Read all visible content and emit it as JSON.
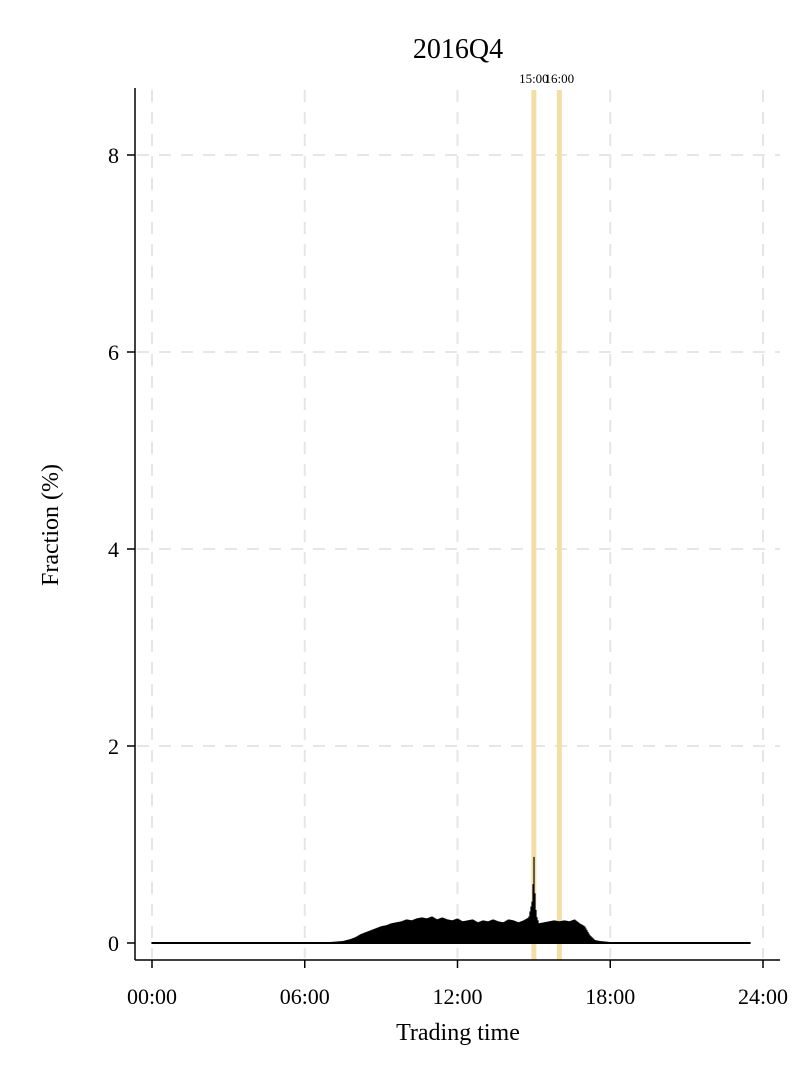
{
  "chart_data": {
    "type": "bar",
    "title": "2016Q4",
    "xlabel": "Trading time",
    "ylabel": "Fraction (%)",
    "xlim": [
      0,
      24
    ],
    "ylim": [
      -0.15,
      8.6
    ],
    "x_ticks": [
      {
        "value": 0,
        "label": "00:00"
      },
      {
        "value": 6,
        "label": "06:00"
      },
      {
        "value": 12,
        "label": "12:00"
      },
      {
        "value": 18,
        "label": "18:00"
      },
      {
        "value": 24,
        "label": "24:00"
      }
    ],
    "y_ticks": [
      {
        "value": 0,
        "label": "0"
      },
      {
        "value": 2,
        "label": "2"
      },
      {
        "value": 4,
        "label": "4"
      },
      {
        "value": 6,
        "label": "6"
      },
      {
        "value": 8,
        "label": "8"
      }
    ],
    "grid": true,
    "reference_lines": [
      {
        "x": 15,
        "label": "15:00",
        "color": "#f3dfa6"
      },
      {
        "x": 16,
        "label": "16:00",
        "color": "#f3dfa6"
      }
    ],
    "series": [
      {
        "x": [
          0.0,
          1.0,
          2.0,
          3.0,
          4.0,
          5.0,
          6.0,
          7.0,
          7.5,
          7.8,
          8.0,
          8.2,
          8.4,
          8.6,
          8.8,
          9.0,
          9.2,
          9.4,
          9.6,
          9.8,
          10.0,
          10.2,
          10.4,
          10.6,
          10.8,
          11.0,
          11.2,
          11.4,
          11.6,
          11.8,
          12.0,
          12.2,
          12.4,
          12.6,
          12.8,
          13.0,
          13.2,
          13.4,
          13.6,
          13.8,
          14.0,
          14.2,
          14.4,
          14.6,
          14.8,
          14.95,
          15.0,
          15.05,
          15.1,
          15.2,
          15.4,
          15.6,
          15.8,
          16.0,
          16.2,
          16.4,
          16.6,
          16.8,
          17.0,
          17.2,
          17.4,
          17.6,
          18.0,
          19.0,
          20.0,
          21.0,
          22.0,
          23.0,
          23.5
        ],
        "values": [
          0.01,
          0.01,
          0.01,
          0.01,
          0.01,
          0.01,
          0.01,
          0.01,
          0.02,
          0.04,
          0.06,
          0.09,
          0.11,
          0.13,
          0.15,
          0.17,
          0.18,
          0.2,
          0.21,
          0.22,
          0.24,
          0.23,
          0.25,
          0.26,
          0.25,
          0.27,
          0.24,
          0.26,
          0.24,
          0.23,
          0.25,
          0.22,
          0.23,
          0.24,
          0.21,
          0.23,
          0.22,
          0.24,
          0.22,
          0.21,
          0.24,
          0.23,
          0.21,
          0.23,
          0.26,
          0.45,
          0.92,
          0.45,
          0.28,
          0.2,
          0.21,
          0.22,
          0.23,
          0.22,
          0.23,
          0.22,
          0.24,
          0.2,
          0.17,
          0.08,
          0.03,
          0.02,
          0.01,
          0.01,
          0.01,
          0.01,
          0.01,
          0.01,
          0.01
        ]
      }
    ]
  }
}
